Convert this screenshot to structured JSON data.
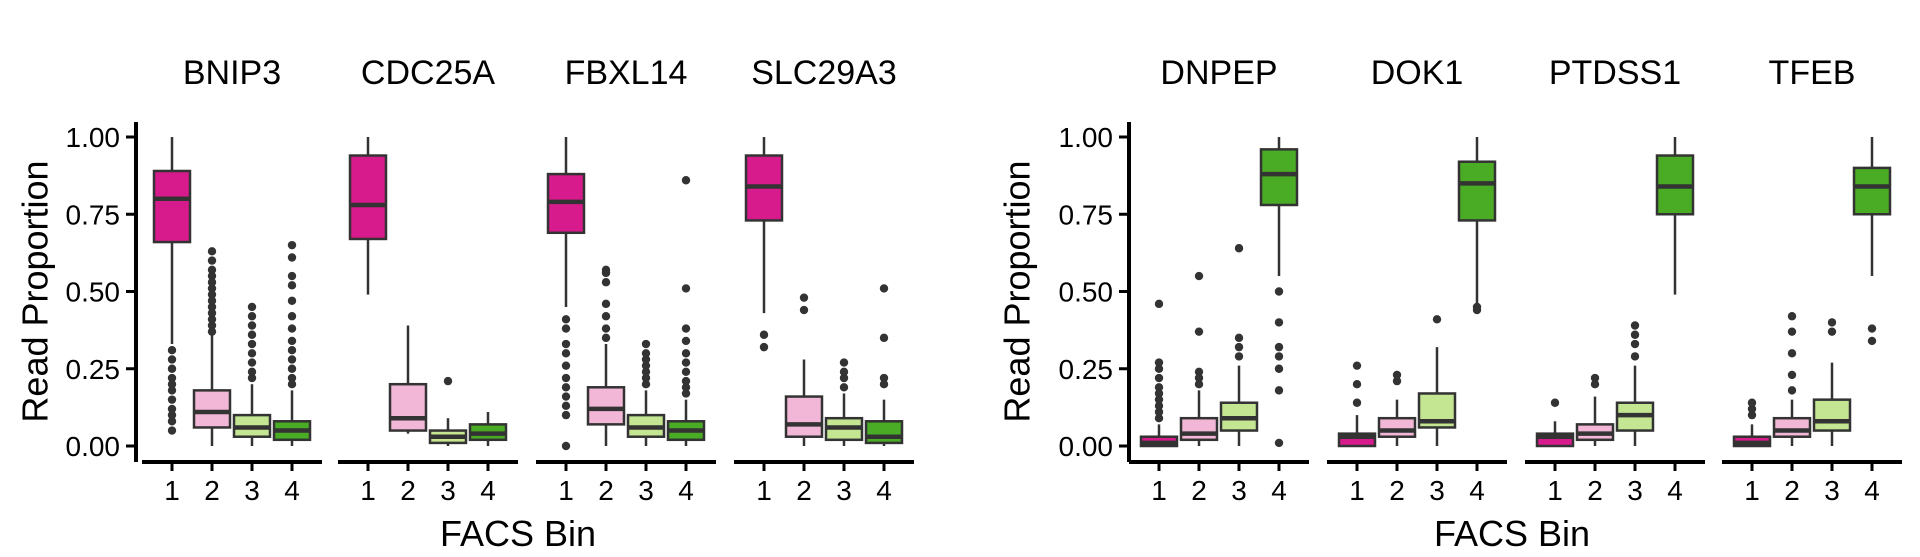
{
  "colors": {
    "bin1": "#d81b8c",
    "bin2": "#f2b6d6",
    "bin3": "#c4e592",
    "bin4": "#4aab24",
    "stroke": "#333333",
    "axis": "#000000"
  },
  "chart_data": [
    {
      "type": "boxplot",
      "xlabel": "FACS Bin",
      "ylabel": "Read Proportion",
      "ylim": [
        0,
        1
      ],
      "yticks": [
        "0.00",
        "0.25",
        "0.50",
        "0.75",
        "1.00"
      ],
      "categories": [
        "1",
        "2",
        "3",
        "4"
      ],
      "facets": [
        {
          "title": "BNIP3",
          "boxes": [
            {
              "min": 0.33,
              "q1": 0.66,
              "median": 0.8,
              "q3": 0.89,
              "max": 1.0,
              "outliers": [
                0.05,
                0.08,
                0.1,
                0.12,
                0.15,
                0.18,
                0.2,
                0.22,
                0.25,
                0.28,
                0.31
              ]
            },
            {
              "min": 0.0,
              "q1": 0.06,
              "median": 0.11,
              "q3": 0.18,
              "max": 0.36,
              "outliers": [
                0.37,
                0.39,
                0.41,
                0.43,
                0.45,
                0.47,
                0.49,
                0.51,
                0.53,
                0.55,
                0.57,
                0.6,
                0.63
              ]
            },
            {
              "min": 0.0,
              "q1": 0.03,
              "median": 0.06,
              "q3": 0.1,
              "max": 0.2,
              "outliers": [
                0.22,
                0.24,
                0.27,
                0.3,
                0.33,
                0.36,
                0.39,
                0.42,
                0.45
              ]
            },
            {
              "min": 0.0,
              "q1": 0.02,
              "median": 0.05,
              "q3": 0.08,
              "max": 0.18,
              "outliers": [
                0.2,
                0.22,
                0.25,
                0.28,
                0.31,
                0.34,
                0.38,
                0.42,
                0.47,
                0.52,
                0.55,
                0.61,
                0.65
              ]
            }
          ]
        },
        {
          "title": "CDC25A",
          "boxes": [
            {
              "min": 0.49,
              "q1": 0.67,
              "median": 0.78,
              "q3": 0.94,
              "max": 1.0,
              "outliers": []
            },
            {
              "min": 0.04,
              "q1": 0.05,
              "median": 0.09,
              "q3": 0.2,
              "max": 0.39,
              "outliers": []
            },
            {
              "min": 0.0,
              "q1": 0.01,
              "median": 0.03,
              "q3": 0.05,
              "max": 0.09,
              "outliers": [
                0.21
              ]
            },
            {
              "min": 0.0,
              "q1": 0.02,
              "median": 0.04,
              "q3": 0.07,
              "max": 0.11,
              "outliers": []
            }
          ]
        },
        {
          "title": "FBXL14",
          "boxes": [
            {
              "min": 0.45,
              "q1": 0.69,
              "median": 0.79,
              "q3": 0.88,
              "max": 1.0,
              "outliers": [
                0.0,
                0.1,
                0.13,
                0.16,
                0.19,
                0.22,
                0.26,
                0.3,
                0.33,
                0.38,
                0.41
              ]
            },
            {
              "min": 0.0,
              "q1": 0.07,
              "median": 0.12,
              "q3": 0.19,
              "max": 0.33,
              "outliers": [
                0.35,
                0.38,
                0.42,
                0.46,
                0.53,
                0.56,
                0.57
              ]
            },
            {
              "min": 0.0,
              "q1": 0.03,
              "median": 0.06,
              "q3": 0.1,
              "max": 0.18,
              "outliers": [
                0.2,
                0.22,
                0.24,
                0.26,
                0.28,
                0.3,
                0.33
              ]
            },
            {
              "min": 0.0,
              "q1": 0.02,
              "median": 0.05,
              "q3": 0.08,
              "max": 0.15,
              "outliers": [
                0.17,
                0.19,
                0.21,
                0.24,
                0.27,
                0.3,
                0.34,
                0.38,
                0.51,
                0.86
              ]
            }
          ]
        },
        {
          "title": "SLC29A3",
          "boxes": [
            {
              "min": 0.43,
              "q1": 0.73,
              "median": 0.84,
              "q3": 0.94,
              "max": 1.0,
              "outliers": [
                0.32,
                0.36
              ]
            },
            {
              "min": 0.0,
              "q1": 0.03,
              "median": 0.07,
              "q3": 0.16,
              "max": 0.28,
              "outliers": [
                0.44,
                0.48
              ]
            },
            {
              "min": 0.0,
              "q1": 0.02,
              "median": 0.06,
              "q3": 0.09,
              "max": 0.17,
              "outliers": [
                0.19,
                0.22,
                0.24,
                0.27
              ]
            },
            {
              "min": 0.0,
              "q1": 0.01,
              "median": 0.03,
              "q3": 0.08,
              "max": 0.15,
              "outliers": [
                0.2,
                0.22,
                0.35,
                0.51
              ]
            }
          ]
        }
      ]
    },
    {
      "type": "boxplot",
      "xlabel": "FACS Bin",
      "ylabel": "Read Proportion",
      "ylim": [
        0,
        1
      ],
      "yticks": [
        "0.00",
        "0.25",
        "0.50",
        "0.75",
        "1.00"
      ],
      "categories": [
        "1",
        "2",
        "3",
        "4"
      ],
      "facets": [
        {
          "title": "DNPEP",
          "boxes": [
            {
              "min": 0.0,
              "q1": 0.0,
              "median": 0.01,
              "q3": 0.03,
              "max": 0.07,
              "outliers": [
                0.09,
                0.11,
                0.13,
                0.15,
                0.17,
                0.19,
                0.22,
                0.25,
                0.27,
                0.46
              ]
            },
            {
              "min": 0.0,
              "q1": 0.02,
              "median": 0.04,
              "q3": 0.09,
              "max": 0.18,
              "outliers": [
                0.2,
                0.22,
                0.24,
                0.37,
                0.55
              ]
            },
            {
              "min": 0.0,
              "q1": 0.05,
              "median": 0.09,
              "q3": 0.14,
              "max": 0.26,
              "outliers": [
                0.29,
                0.32,
                0.35,
                0.64
              ]
            },
            {
              "min": 0.55,
              "q1": 0.78,
              "median": 0.88,
              "q3": 0.96,
              "max": 1.0,
              "outliers": [
                0.01,
                0.18,
                0.25,
                0.29,
                0.32,
                0.4,
                0.5
              ]
            }
          ]
        },
        {
          "title": "DOK1",
          "boxes": [
            {
              "min": 0.0,
              "q1": 0.0,
              "median": 0.03,
              "q3": 0.04,
              "max": 0.1,
              "outliers": [
                0.14,
                0.2,
                0.26
              ]
            },
            {
              "min": 0.0,
              "q1": 0.03,
              "median": 0.05,
              "q3": 0.09,
              "max": 0.15,
              "outliers": [
                0.21,
                0.23
              ]
            },
            {
              "min": 0.0,
              "q1": 0.06,
              "median": 0.08,
              "q3": 0.17,
              "max": 0.32,
              "outliers": [
                0.41
              ]
            },
            {
              "min": 0.45,
              "q1": 0.73,
              "median": 0.85,
              "q3": 0.92,
              "max": 1.0,
              "outliers": [
                0.44,
                0.45
              ]
            }
          ]
        },
        {
          "title": "PTDSS1",
          "boxes": [
            {
              "min": 0.0,
              "q1": 0.0,
              "median": 0.03,
              "q3": 0.04,
              "max": 0.08,
              "outliers": [
                0.14
              ]
            },
            {
              "min": 0.0,
              "q1": 0.02,
              "median": 0.04,
              "q3": 0.07,
              "max": 0.16,
              "outliers": [
                0.2,
                0.22
              ]
            },
            {
              "min": 0.0,
              "q1": 0.05,
              "median": 0.1,
              "q3": 0.14,
              "max": 0.26,
              "outliers": [
                0.29,
                0.33,
                0.36,
                0.39
              ]
            },
            {
              "min": 0.49,
              "q1": 0.75,
              "median": 0.84,
              "q3": 0.94,
              "max": 1.0,
              "outliers": []
            }
          ]
        },
        {
          "title": "TFEB",
          "boxes": [
            {
              "min": 0.0,
              "q1": 0.0,
              "median": 0.01,
              "q3": 0.03,
              "max": 0.07,
              "outliers": [
                0.1,
                0.12,
                0.14
              ]
            },
            {
              "min": 0.0,
              "q1": 0.03,
              "median": 0.05,
              "q3": 0.09,
              "max": 0.15,
              "outliers": [
                0.18,
                0.23,
                0.3,
                0.37,
                0.42
              ]
            },
            {
              "min": 0.0,
              "q1": 0.05,
              "median": 0.08,
              "q3": 0.15,
              "max": 0.27,
              "outliers": [
                0.37,
                0.4
              ]
            },
            {
              "min": 0.55,
              "q1": 0.75,
              "median": 0.84,
              "q3": 0.9,
              "max": 1.0,
              "outliers": [
                0.34,
                0.38
              ]
            }
          ]
        }
      ]
    }
  ]
}
